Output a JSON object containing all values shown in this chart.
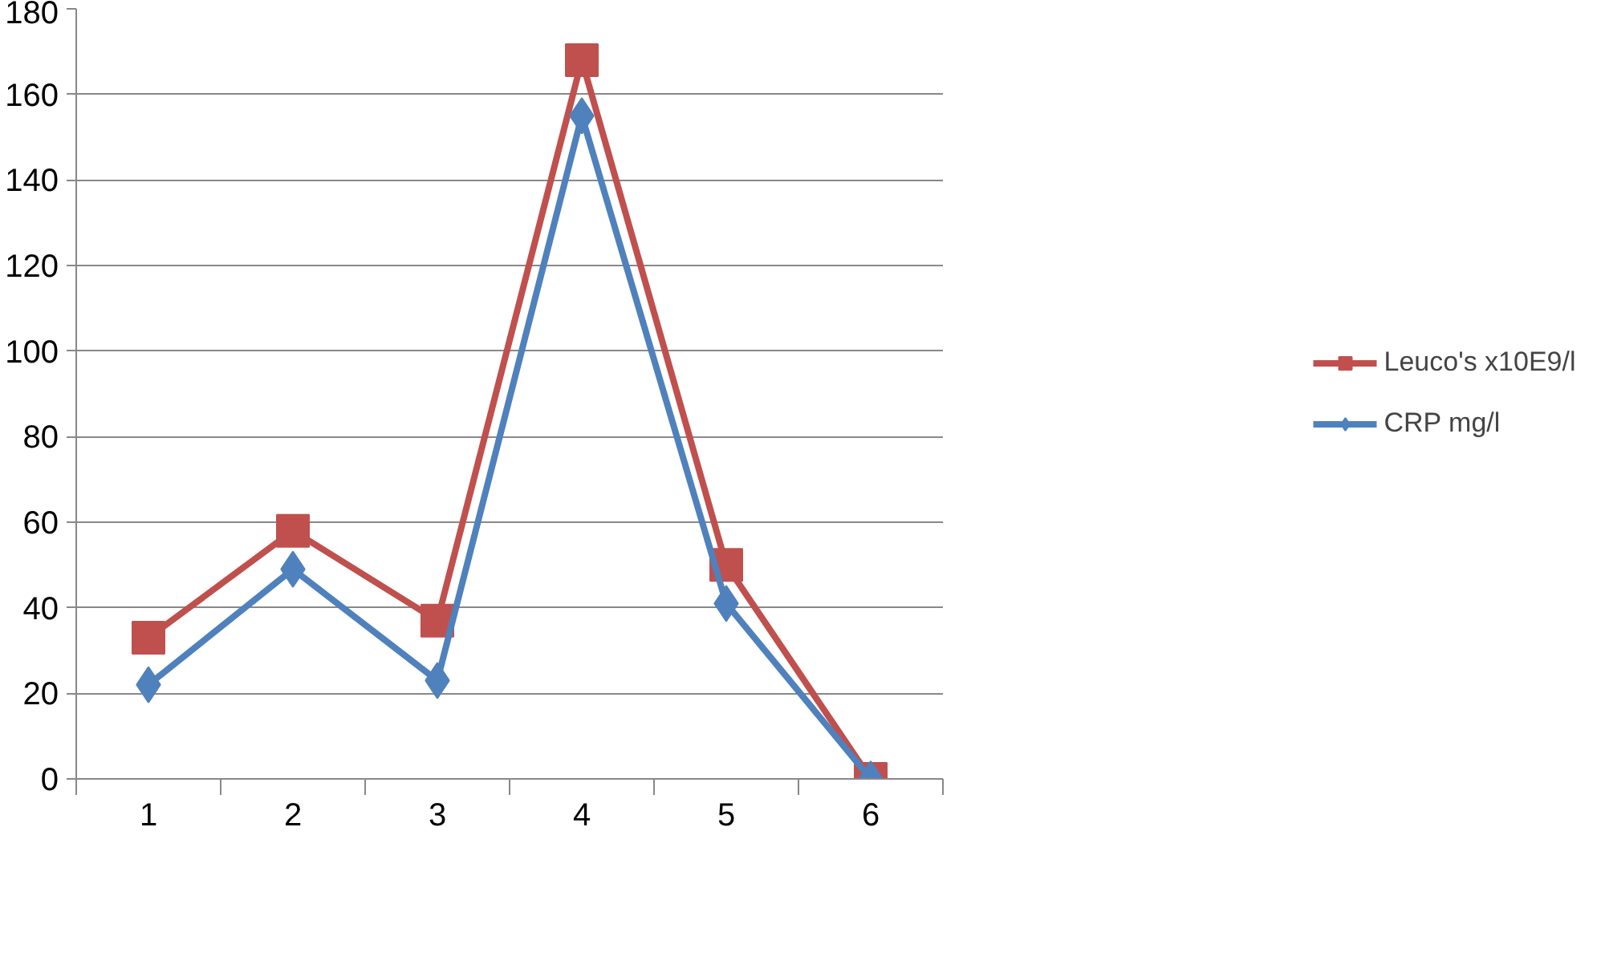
{
  "chart_data": {
    "type": "line",
    "categories": [
      "1",
      "2",
      "3",
      "4",
      "5",
      "6"
    ],
    "series": [
      {
        "name": "Leuco's x10E9/l",
        "color": "#c0504d",
        "marker": "square",
        "values": [
          33,
          58,
          37,
          168,
          50,
          0
        ]
      },
      {
        "name": "CRP mg/l",
        "color": "#4f81bd",
        "marker": "diamond",
        "values": [
          22,
          49,
          23,
          155,
          41,
          0
        ]
      }
    ],
    "ylim": [
      0,
      180
    ],
    "yticks": [
      0,
      20,
      40,
      60,
      80,
      100,
      120,
      140,
      160,
      180
    ],
    "grid": "y",
    "legend": "right"
  }
}
